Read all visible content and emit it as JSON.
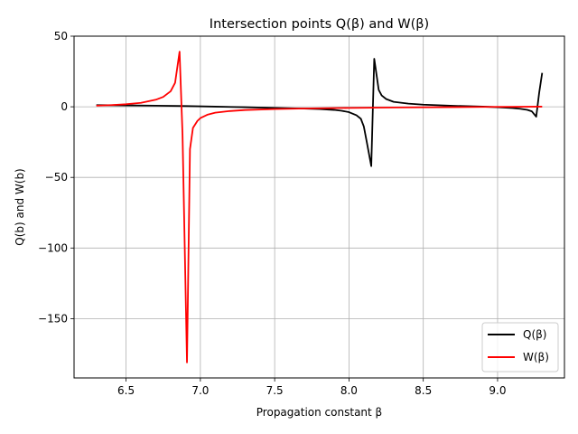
{
  "chart_data": {
    "type": "line",
    "title": "Intersection points Q(β) and W(β)",
    "xlabel": "Propagation constant β",
    "ylabel": "Q(b) and W(b)",
    "xlim": [
      6.15,
      9.45
    ],
    "ylim": [
      -192,
      50
    ],
    "xticks": [
      6.5,
      7.0,
      7.5,
      8.0,
      8.5,
      9.0
    ],
    "xtick_labels": [
      "6.5",
      "7.0",
      "7.5",
      "8.0",
      "8.5",
      "9.0"
    ],
    "yticks": [
      -150,
      -100,
      -50,
      0,
      50
    ],
    "ytick_labels": [
      "−150",
      "−100",
      "−50",
      "0",
      "50"
    ],
    "grid": true,
    "legend_position": "lower-right",
    "series": [
      {
        "name": "Q(β)",
        "color": "#000000",
        "x": [
          6.3,
          6.5,
          6.7,
          6.9,
          7.1,
          7.3,
          7.5,
          7.7,
          7.8,
          7.9,
          7.95,
          8.0,
          8.05,
          8.08,
          8.1,
          8.12,
          8.15,
          8.17,
          8.2,
          8.22,
          8.25,
          8.3,
          8.4,
          8.5,
          8.7,
          8.9,
          9.0,
          9.1,
          9.15,
          9.2,
          9.23,
          9.26,
          9.28,
          9.3
        ],
        "y": [
          1.2,
          1.0,
          0.8,
          0.5,
          0.1,
          -0.3,
          -0.8,
          -1.3,
          -1.6,
          -2.2,
          -2.8,
          -3.8,
          -6.0,
          -8.5,
          -14.0,
          -25.0,
          -42.0,
          34.0,
          12.0,
          8.0,
          5.5,
          3.5,
          2.2,
          1.5,
          0.7,
          0.1,
          -0.3,
          -0.9,
          -1.4,
          -2.2,
          -3.2,
          -7.0,
          10.0,
          24.0
        ]
      },
      {
        "name": "W(β)",
        "color": "#ff0000",
        "x": [
          6.3,
          6.4,
          6.5,
          6.6,
          6.7,
          6.75,
          6.8,
          6.83,
          6.86,
          6.88,
          6.91,
          6.93,
          6.95,
          6.98,
          7.0,
          7.05,
          7.1,
          7.2,
          7.3,
          7.5,
          7.7,
          8.0,
          8.3,
          8.6,
          8.9,
          9.1,
          9.3
        ],
        "y": [
          0.8,
          1.2,
          1.8,
          2.8,
          5.0,
          7.0,
          11.0,
          17.0,
          39.0,
          -20.0,
          -181.0,
          -30.0,
          -15.0,
          -10.0,
          -8.0,
          -5.5,
          -4.2,
          -3.0,
          -2.3,
          -1.6,
          -1.2,
          -0.8,
          -0.5,
          -0.3,
          -0.1,
          0.0,
          0.1
        ]
      }
    ]
  }
}
